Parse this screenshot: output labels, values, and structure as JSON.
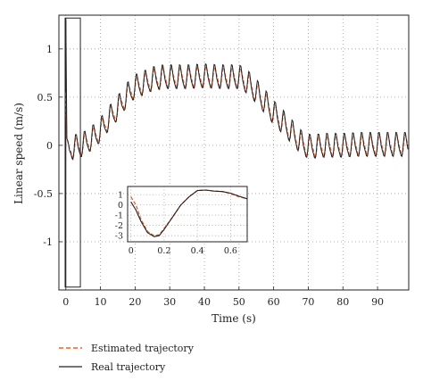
{
  "chart_data": [
    {
      "type": "line",
      "xlabel": "Time (s)",
      "ylabel": "Linear speed (m/s)",
      "xlim": [
        -2,
        99
      ],
      "ylim": [
        -1.5,
        1.35
      ],
      "xticks": [
        0,
        10,
        20,
        30,
        40,
        50,
        60,
        70,
        80,
        90
      ],
      "yticks": [
        -1,
        -0.5,
        0,
        0.5,
        1
      ],
      "grid": "dotted",
      "legend_position": "bottom-left, below axes",
      "series": [
        {
          "name": "Estimated trajectory",
          "color": "#e8602c",
          "style": "dashed",
          "x": [
            0,
            0.3,
            1,
            3,
            5,
            8,
            10,
            12,
            15,
            17,
            19,
            20,
            22,
            25,
            28,
            30,
            35,
            40,
            45,
            50,
            52,
            55,
            58,
            60,
            63,
            66,
            68,
            70,
            72,
            75,
            80,
            85,
            90,
            95,
            99
          ],
          "y": [
            0.55,
            0.05,
            -0.05,
            -0.02,
            0.0,
            0.08,
            0.15,
            0.25,
            0.38,
            0.48,
            0.57,
            0.6,
            0.63,
            0.68,
            0.7,
            0.7,
            0.7,
            0.71,
            0.7,
            0.7,
            0.66,
            0.55,
            0.42,
            0.33,
            0.22,
            0.1,
            0.02,
            -0.02,
            -0.02,
            -0.01,
            -0.01,
            0.0,
            0.0,
            0.0,
            0.0
          ],
          "oscillation_amplitude": 0.1,
          "oscillation_period": 2.5
        },
        {
          "name": "Real trajectory",
          "color": "#222222",
          "style": "solid",
          "x": [
            0,
            0.3,
            1,
            3,
            5,
            8,
            10,
            12,
            15,
            17,
            19,
            20,
            22,
            25,
            28,
            30,
            35,
            40,
            45,
            50,
            52,
            55,
            58,
            60,
            63,
            66,
            68,
            70,
            72,
            75,
            80,
            85,
            90,
            95,
            99
          ],
          "y": [
            1.3,
            0.05,
            -0.05,
            -0.02,
            0.0,
            0.08,
            0.15,
            0.25,
            0.38,
            0.48,
            0.57,
            0.6,
            0.63,
            0.68,
            0.7,
            0.7,
            0.7,
            0.71,
            0.7,
            0.7,
            0.66,
            0.55,
            0.42,
            0.33,
            0.22,
            0.1,
            0.02,
            -0.02,
            -0.02,
            -0.01,
            -0.01,
            0.0,
            0.0,
            0.0,
            0.0
          ],
          "oscillation_amplitude": 0.12,
          "oscillation_period": 2.5
        }
      ]
    },
    {
      "type": "line",
      "role": "inset",
      "xlim": [
        -0.02,
        0.7
      ],
      "ylim": [
        -3.6,
        1.8
      ],
      "xticks": [
        0,
        0.2,
        0.4,
        0.6
      ],
      "yticks": [
        -3,
        -2,
        -1,
        0,
        1
      ],
      "grid": "dotted",
      "series": [
        {
          "name": "Estimated trajectory",
          "color": "#e8602c",
          "style": "dashed",
          "x": [
            0,
            0.03,
            0.06,
            0.1,
            0.14,
            0.17,
            0.2,
            0.25,
            0.3,
            0.35,
            0.4,
            0.45,
            0.5,
            0.55,
            0.6,
            0.65,
            0.7
          ],
          "y": [
            0.8,
            0.0,
            -1.4,
            -2.6,
            -3.0,
            -2.9,
            -2.3,
            -1.2,
            0.0,
            0.8,
            1.4,
            1.45,
            1.35,
            1.3,
            1.1,
            0.8,
            0.6
          ]
        },
        {
          "name": "Real trajectory",
          "color": "#222222",
          "style": "solid",
          "x": [
            0,
            0.03,
            0.06,
            0.1,
            0.14,
            0.17,
            0.2,
            0.25,
            0.3,
            0.35,
            0.4,
            0.45,
            0.5,
            0.55,
            0.6,
            0.65,
            0.7
          ],
          "y": [
            0.3,
            -0.5,
            -1.6,
            -2.7,
            -3.1,
            -3.0,
            -2.4,
            -1.2,
            0.0,
            0.8,
            1.4,
            1.45,
            1.35,
            1.3,
            1.15,
            0.85,
            0.6
          ]
        }
      ]
    }
  ]
}
